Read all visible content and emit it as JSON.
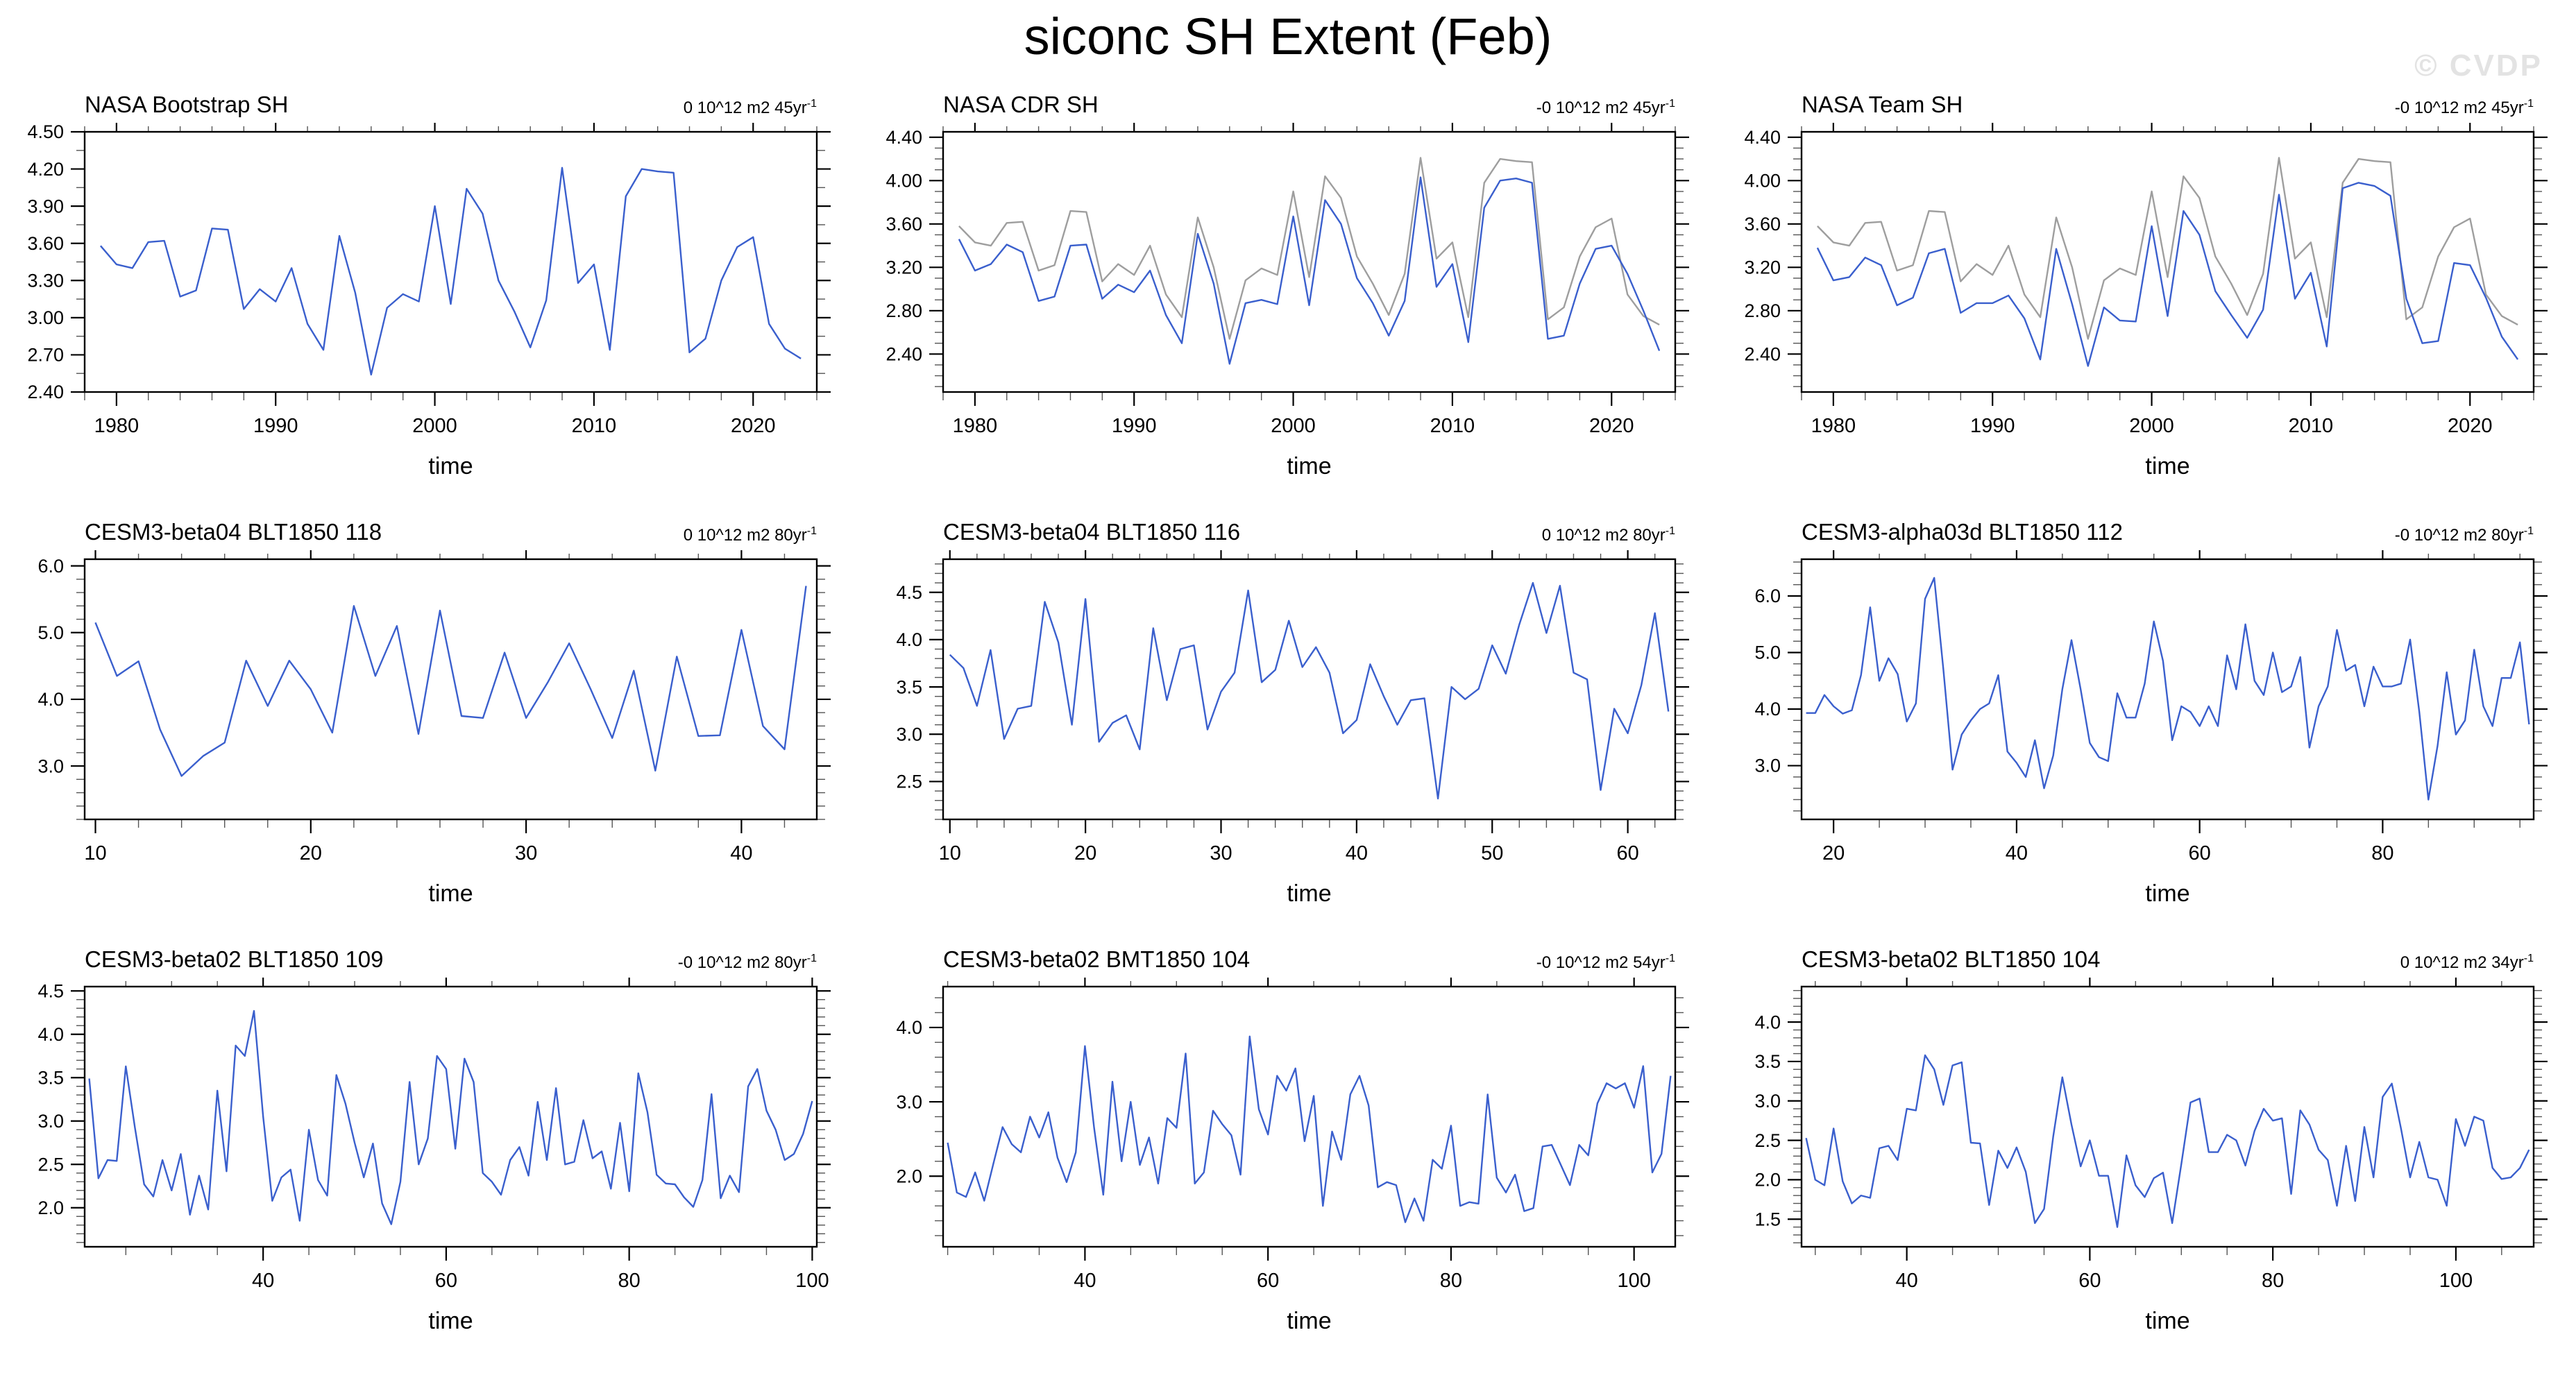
{
  "title": "siconc SH Extent (Feb)",
  "watermark": "© CVDP",
  "colors": {
    "line_blue": "#3A5FCD",
    "line_gray": "#9E9E9E",
    "axis": "#000000",
    "minor_tick": "#555555",
    "watermark_gray": "#e3e3e3"
  },
  "chart_data": [
    {
      "type": "line",
      "title": "NASA Bootstrap SH",
      "trend_label": "0 10^12 m2 45yr",
      "trend_sup": "-1",
      "xlabel": "time",
      "x_range": [
        1978,
        2024
      ],
      "y_range": [
        2.4,
        4.5
      ],
      "x_major_ticks": [
        1980,
        1990,
        2000,
        2010,
        2020
      ],
      "x_minor_step": 2,
      "y_major_ticks": [
        2.4,
        2.7,
        3.0,
        3.3,
        3.6,
        3.9,
        4.2,
        4.5
      ],
      "y_minor_step": 0.15,
      "y_tick_decimals": 2,
      "series": [
        {
          "name": "nasa-bootstrap",
          "color": "blue",
          "x_start": 1979,
          "x_step": 1,
          "values": [
            3.58,
            3.43,
            3.4,
            3.61,
            3.62,
            3.17,
            3.22,
            3.72,
            3.71,
            3.07,
            3.23,
            3.13,
            3.4,
            2.95,
            2.74,
            3.66,
            3.2,
            2.54,
            3.08,
            3.19,
            3.13,
            3.9,
            3.11,
            4.04,
            3.84,
            3.3,
            3.05,
            2.76,
            3.14,
            4.21,
            3.28,
            3.43,
            2.74,
            3.98,
            4.2,
            4.18,
            4.17,
            2.72,
            2.83,
            3.3,
            3.57,
            3.65,
            2.95,
            2.75,
            2.67
          ]
        }
      ]
    },
    {
      "type": "line",
      "title": "NASA CDR SH",
      "trend_label": "-0 10^12 m2 45yr",
      "trend_sup": "-1",
      "xlabel": "time",
      "x_range": [
        1978,
        2024
      ],
      "y_range": [
        2.05,
        4.45
      ],
      "x_major_ticks": [
        1980,
        1990,
        2000,
        2010,
        2020
      ],
      "x_minor_step": 2,
      "y_major_ticks": [
        2.4,
        2.8,
        3.2,
        3.6,
        4.0,
        4.4
      ],
      "y_minor_step": 0.1,
      "y_tick_decimals": 2,
      "series": [
        {
          "name": "reference-gray",
          "color": "gray",
          "x_start": 1979,
          "x_step": 1,
          "values": [
            3.58,
            3.43,
            3.4,
            3.61,
            3.62,
            3.17,
            3.22,
            3.72,
            3.71,
            3.07,
            3.23,
            3.13,
            3.4,
            2.95,
            2.74,
            3.66,
            3.2,
            2.54,
            3.08,
            3.19,
            3.13,
            3.9,
            3.11,
            4.04,
            3.84,
            3.3,
            3.05,
            2.76,
            3.14,
            4.21,
            3.28,
            3.43,
            2.74,
            3.98,
            4.2,
            4.18,
            4.17,
            2.72,
            2.83,
            3.3,
            3.57,
            3.65,
            2.95,
            2.75,
            2.67
          ]
        },
        {
          "name": "nasa-cdr",
          "color": "blue",
          "x_start": 1979,
          "x_step": 1,
          "values": [
            3.46,
            3.17,
            3.23,
            3.41,
            3.34,
            2.89,
            2.93,
            3.4,
            3.41,
            2.91,
            3.04,
            2.97,
            3.17,
            2.76,
            2.5,
            3.51,
            3.05,
            2.31,
            2.87,
            2.9,
            2.86,
            3.67,
            2.85,
            3.82,
            3.6,
            3.1,
            2.87,
            2.57,
            2.89,
            4.03,
            3.02,
            3.23,
            2.51,
            3.75,
            4.0,
            4.02,
            3.98,
            2.54,
            2.57,
            3.05,
            3.37,
            3.4,
            3.14,
            2.8,
            2.43
          ]
        }
      ]
    },
    {
      "type": "line",
      "title": "NASA Team SH",
      "trend_label": "-0 10^12 m2 45yr",
      "trend_sup": "-1",
      "xlabel": "time",
      "x_range": [
        1978,
        2024
      ],
      "y_range": [
        2.05,
        4.45
      ],
      "x_major_ticks": [
        1980,
        1990,
        2000,
        2010,
        2020
      ],
      "x_minor_step": 2,
      "y_major_ticks": [
        2.4,
        2.8,
        3.2,
        3.6,
        4.0,
        4.4
      ],
      "y_minor_step": 0.1,
      "y_tick_decimals": 2,
      "series": [
        {
          "name": "reference-gray",
          "color": "gray",
          "x_start": 1979,
          "x_step": 1,
          "values": [
            3.58,
            3.43,
            3.4,
            3.61,
            3.62,
            3.17,
            3.22,
            3.72,
            3.71,
            3.07,
            3.23,
            3.13,
            3.4,
            2.95,
            2.74,
            3.66,
            3.2,
            2.54,
            3.08,
            3.19,
            3.13,
            3.9,
            3.11,
            4.04,
            3.84,
            3.3,
            3.05,
            2.76,
            3.14,
            4.21,
            3.28,
            3.43,
            2.74,
            3.98,
            4.2,
            4.18,
            4.17,
            2.72,
            2.83,
            3.3,
            3.57,
            3.65,
            2.95,
            2.75,
            2.67
          ]
        },
        {
          "name": "nasa-team",
          "color": "blue",
          "x_start": 1979,
          "x_step": 1,
          "values": [
            3.38,
            3.08,
            3.11,
            3.29,
            3.22,
            2.85,
            2.92,
            3.33,
            3.37,
            2.78,
            2.87,
            2.87,
            2.94,
            2.73,
            2.35,
            3.37,
            2.86,
            2.29,
            2.83,
            2.71,
            2.7,
            3.58,
            2.75,
            3.72,
            3.5,
            2.98,
            2.76,
            2.55,
            2.81,
            3.87,
            2.91,
            3.15,
            2.47,
            3.93,
            3.98,
            3.95,
            3.86,
            2.91,
            2.5,
            2.52,
            3.24,
            3.22,
            2.92,
            2.56,
            2.35
          ]
        }
      ]
    },
    {
      "type": "line",
      "title": "CESM3-beta04 BLT1850 118",
      "trend_label": "0 10^12 m2 80yr",
      "trend_sup": "-1",
      "xlabel": "time",
      "x_range": [
        9.5,
        43.5
      ],
      "y_range": [
        2.2,
        6.1
      ],
      "x_major_ticks": [
        10,
        20,
        30,
        40
      ],
      "x_minor_step": 2,
      "y_major_ticks": [
        3.0,
        4.0,
        5.0,
        6.0
      ],
      "y_minor_step": 0.2,
      "y_tick_decimals": 1,
      "series": [
        {
          "name": "cesm3-beta04-118",
          "color": "blue",
          "x_start": 10,
          "x_step": 1,
          "values": [
            5.15,
            4.35,
            4.57,
            3.55,
            2.85,
            3.15,
            3.35,
            4.58,
            3.9,
            4.58,
            4.15,
            3.5,
            5.4,
            4.35,
            5.1,
            3.48,
            5.33,
            3.75,
            3.72,
            4.7,
            3.72,
            4.25,
            4.84,
            4.15,
            3.42,
            4.43,
            2.93,
            4.64,
            3.45,
            3.46,
            5.04,
            3.6,
            3.25,
            5.7
          ]
        }
      ]
    },
    {
      "type": "line",
      "title": "CESM3-beta04 BLT1850 116",
      "trend_label": "0 10^12 m2 80yr",
      "trend_sup": "-1",
      "xlabel": "time",
      "x_range": [
        9.5,
        63.5
      ],
      "y_range": [
        2.1,
        4.85
      ],
      "x_major_ticks": [
        10,
        20,
        30,
        40,
        50,
        60
      ],
      "x_minor_step": 2,
      "y_major_ticks": [
        2.5,
        3.0,
        3.5,
        4.0,
        4.5
      ],
      "y_minor_step": 0.1,
      "y_tick_decimals": 1,
      "series": [
        {
          "name": "cesm3-beta04-116",
          "color": "blue",
          "x_start": 10,
          "x_step": 1,
          "values": [
            3.84,
            3.7,
            3.3,
            3.89,
            2.95,
            3.27,
            3.3,
            4.4,
            3.97,
            3.1,
            4.43,
            2.92,
            3.12,
            3.2,
            2.84,
            4.12,
            3.36,
            3.9,
            3.94,
            3.05,
            3.45,
            3.65,
            4.52,
            3.55,
            3.68,
            4.2,
            3.71,
            3.92,
            3.65,
            3.01,
            3.15,
            3.74,
            3.4,
            3.1,
            3.36,
            3.38,
            2.32,
            3.5,
            3.37,
            3.48,
            3.94,
            3.64,
            4.16,
            4.6,
            4.07,
            4.57,
            3.65,
            3.58,
            2.41,
            3.27,
            3.01,
            3.52,
            4.28,
            3.24
          ]
        }
      ]
    },
    {
      "type": "line",
      "title": "CESM3-alpha03d BLT1850 112",
      "trend_label": "-0 10^12 m2 80yr",
      "trend_sup": "-1",
      "xlabel": "time",
      "x_range": [
        16.5,
        96.5
      ],
      "y_range": [
        2.05,
        6.65
      ],
      "x_major_ticks": [
        20,
        40,
        60,
        80
      ],
      "x_minor_step": 5,
      "y_major_ticks": [
        3.0,
        4.0,
        5.0,
        6.0
      ],
      "y_minor_step": 0.2,
      "y_tick_decimals": 1,
      "series": [
        {
          "name": "cesm3-alpha03d-112",
          "color": "blue",
          "x_start": 17,
          "x_step": 1,
          "values": [
            3.93,
            3.93,
            4.25,
            4.05,
            3.92,
            3.98,
            4.6,
            5.8,
            4.5,
            4.9,
            4.62,
            3.78,
            4.1,
            5.95,
            6.32,
            4.7,
            2.93,
            3.55,
            3.8,
            4.0,
            4.1,
            4.6,
            3.25,
            3.05,
            2.8,
            3.45,
            2.6,
            3.18,
            4.35,
            5.22,
            4.35,
            3.4,
            3.15,
            3.08,
            4.28,
            3.85,
            3.85,
            4.45,
            5.55,
            4.85,
            3.45,
            4.05,
            3.95,
            3.7,
            4.05,
            3.7,
            4.95,
            4.35,
            5.5,
            4.5,
            4.25,
            5.0,
            4.3,
            4.4,
            4.92,
            3.32,
            4.05,
            4.4,
            5.4,
            4.68,
            4.78,
            4.05,
            4.75,
            4.4,
            4.4,
            4.45,
            5.23,
            3.95,
            2.4,
            3.35,
            4.65,
            3.55,
            3.8,
            5.05,
            4.05,
            3.7,
            4.55,
            4.55,
            5.18,
            3.73
          ]
        }
      ]
    },
    {
      "type": "line",
      "title": "CESM3-beta02 BLT1850 109",
      "trend_label": "-0 10^12 m2 80yr",
      "trend_sup": "-1",
      "xlabel": "time",
      "x_range": [
        20.5,
        100.5
      ],
      "y_range": [
        1.55,
        4.55
      ],
      "x_major_ticks": [
        40,
        60,
        80,
        100
      ],
      "x_minor_step": 5,
      "y_major_ticks": [
        2.0,
        2.5,
        3.0,
        3.5,
        4.0,
        4.5
      ],
      "y_minor_step": 0.1,
      "y_tick_decimals": 1,
      "series": [
        {
          "name": "cesm3-beta02-109",
          "color": "blue",
          "x_start": 21,
          "x_step": 1,
          "values": [
            3.49,
            2.34,
            2.55,
            2.54,
            3.63,
            2.92,
            2.27,
            2.13,
            2.55,
            2.2,
            2.62,
            1.92,
            2.37,
            1.98,
            3.35,
            2.42,
            3.87,
            3.75,
            4.27,
            3.05,
            2.08,
            2.35,
            2.44,
            1.85,
            2.9,
            2.32,
            2.14,
            3.53,
            3.2,
            2.75,
            2.35,
            2.74,
            2.05,
            1.81,
            2.3,
            3.45,
            2.5,
            2.8,
            3.75,
            3.6,
            2.68,
            3.72,
            3.45,
            2.4,
            2.3,
            2.15,
            2.55,
            2.7,
            2.37,
            3.22,
            2.55,
            3.38,
            2.5,
            2.53,
            3.01,
            2.57,
            2.65,
            2.22,
            2.98,
            2.19,
            3.55,
            3.1,
            2.38,
            2.28,
            2.27,
            2.12,
            2.01,
            2.32,
            3.31,
            2.11,
            2.37,
            2.18,
            3.4,
            3.6,
            3.12,
            2.9,
            2.55,
            2.62,
            2.85,
            3.23
          ]
        }
      ]
    },
    {
      "type": "line",
      "title": "CESM3-beta02 BMT1850 104",
      "trend_label": "-0 10^12 m2 54yr",
      "trend_sup": "-1",
      "xlabel": "time",
      "x_range": [
        24.5,
        104.5
      ],
      "y_range": [
        1.05,
        4.55
      ],
      "x_major_ticks": [
        40,
        60,
        80,
        100
      ],
      "x_minor_step": 5,
      "y_major_ticks": [
        2.0,
        3.0,
        4.0
      ],
      "y_minor_step": 0.2,
      "y_tick_decimals": 1,
      "series": [
        {
          "name": "cesm3-beta02-bmt-104",
          "color": "blue",
          "x_start": 25,
          "x_step": 1,
          "values": [
            2.45,
            1.78,
            1.72,
            2.05,
            1.67,
            2.17,
            2.66,
            2.43,
            2.32,
            2.8,
            2.52,
            2.86,
            2.25,
            1.92,
            2.32,
            3.75,
            2.65,
            1.75,
            3.27,
            2.2,
            3.0,
            2.15,
            2.52,
            1.9,
            2.78,
            2.65,
            3.65,
            1.9,
            2.05,
            2.88,
            2.7,
            2.55,
            2.02,
            3.88,
            2.9,
            2.56,
            3.35,
            3.15,
            3.45,
            2.47,
            3.08,
            1.6,
            2.6,
            2.22,
            3.1,
            3.35,
            2.95,
            1.85,
            1.92,
            1.88,
            1.38,
            1.7,
            1.4,
            2.22,
            2.1,
            2.68,
            1.6,
            1.65,
            1.63,
            3.1,
            1.98,
            1.78,
            2.02,
            1.53,
            1.57,
            2.4,
            2.42,
            2.15,
            1.88,
            2.42,
            2.28,
            2.98,
            3.25,
            3.18,
            3.25,
            2.92,
            3.48,
            2.05,
            2.3,
            3.35
          ]
        }
      ]
    },
    {
      "type": "line",
      "title": "CESM3-beta02 BLT1850 104",
      "trend_label": "0 10^12 m2 34yr",
      "trend_sup": "-1",
      "xlabel": "time",
      "x_range": [
        28.5,
        108.5
      ],
      "y_range": [
        1.15,
        4.45
      ],
      "x_major_ticks": [
        40,
        60,
        80,
        100
      ],
      "x_minor_step": 5,
      "y_major_ticks": [
        1.5,
        2.0,
        2.5,
        3.0,
        3.5,
        4.0
      ],
      "y_minor_step": 0.1,
      "y_tick_decimals": 1,
      "series": [
        {
          "name": "cesm3-beta02-blt-104",
          "color": "blue",
          "x_start": 29,
          "x_step": 1,
          "values": [
            2.53,
            2.0,
            1.93,
            2.65,
            1.98,
            1.7,
            1.8,
            1.77,
            2.4,
            2.43,
            2.25,
            2.9,
            2.88,
            3.58,
            3.4,
            2.95,
            3.45,
            3.49,
            2.47,
            2.46,
            1.68,
            2.37,
            2.15,
            2.41,
            2.1,
            1.45,
            1.63,
            2.55,
            3.3,
            2.7,
            2.17,
            2.5,
            2.05,
            2.05,
            1.4,
            2.31,
            1.93,
            1.78,
            2.02,
            2.09,
            1.45,
            2.2,
            2.98,
            3.03,
            2.35,
            2.35,
            2.57,
            2.5,
            2.18,
            2.62,
            2.9,
            2.75,
            2.78,
            1.82,
            2.88,
            2.7,
            2.38,
            2.25,
            1.67,
            2.43,
            1.73,
            2.67,
            2.03,
            3.05,
            3.22,
            2.65,
            2.03,
            2.48,
            2.03,
            2.0,
            1.67,
            2.77,
            2.43,
            2.8,
            2.75,
            2.15,
            2.01,
            2.03,
            2.15,
            2.38
          ]
        }
      ]
    }
  ]
}
